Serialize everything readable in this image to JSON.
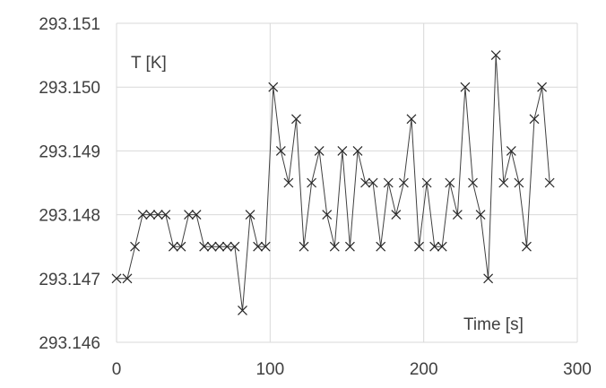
{
  "chart_data": {
    "type": "scatter",
    "title": "",
    "xlabel": "Time [s]",
    "ylabel": "T [K]",
    "xlim": [
      0,
      300
    ],
    "ylim": [
      293.146,
      293.151
    ],
    "xticks": [
      0,
      100,
      200,
      300
    ],
    "yticks": [
      293.146,
      293.147,
      293.148,
      293.149,
      293.15,
      293.151
    ],
    "xtick_labels": [
      "0",
      "100",
      "200",
      "300"
    ],
    "ytick_labels": [
      "293.146",
      "293.147",
      "293.148",
      "293.149",
      "293.150",
      "293.151"
    ],
    "grid": true,
    "marker": "x",
    "lines": "straight",
    "series": [
      {
        "x": [
          0,
          7,
          12,
          17,
          22,
          27,
          32,
          37,
          42,
          47,
          52,
          57,
          62,
          67,
          72,
          77,
          82,
          87,
          92,
          97,
          102,
          107,
          112,
          117,
          122,
          127,
          132,
          137,
          142,
          147,
          152,
          157,
          162,
          167,
          172,
          177,
          182,
          187,
          192,
          197,
          202,
          207,
          212,
          217,
          222,
          227,
          232,
          237,
          242,
          247,
          252,
          257,
          262,
          267,
          272,
          277,
          282
        ],
        "y": [
          293.147,
          293.147,
          293.1475,
          293.148,
          293.148,
          293.148,
          293.148,
          293.1475,
          293.1475,
          293.148,
          293.148,
          293.1475,
          293.1475,
          293.1475,
          293.1475,
          293.1475,
          293.1465,
          293.148,
          293.1475,
          293.1475,
          293.15,
          293.149,
          293.1485,
          293.1495,
          293.1475,
          293.1485,
          293.149,
          293.148,
          293.1475,
          293.149,
          293.1475,
          293.149,
          293.1485,
          293.1485,
          293.1475,
          293.1485,
          293.148,
          293.1485,
          293.1495,
          293.1475,
          293.1485,
          293.1475,
          293.1475,
          293.1485,
          293.148,
          293.15,
          293.1485,
          293.148,
          293.147,
          293.1505,
          293.1485,
          293.149,
          293.1485,
          293.1475,
          293.1495,
          293.15,
          293.1485
        ]
      }
    ]
  }
}
